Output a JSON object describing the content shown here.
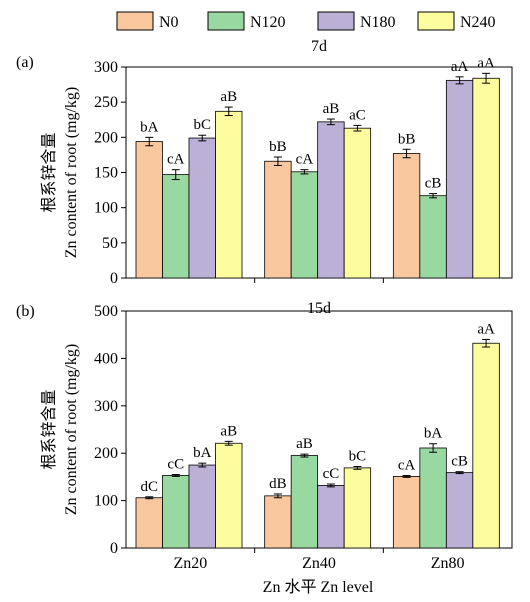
{
  "legend": [
    {
      "label": "N0",
      "color": "#F9C89F"
    },
    {
      "label": "N120",
      "color": "#9AD8A2"
    },
    {
      "label": "N180",
      "color": "#BDB0D6"
    },
    {
      "label": "N240",
      "color": "#FDFC9E"
    }
  ],
  "xaxis_title": "Zn 水平 Zn level",
  "chart_data": [
    {
      "type": "bar",
      "panel": "(a)",
      "title": "7d",
      "ylabel_cn": "根系锌含量",
      "ylabel": "Zn content of root (mg/kg)",
      "ylim": [
        0,
        300
      ],
      "yticks": [
        0,
        50,
        100,
        150,
        200,
        250,
        300
      ],
      "categories": [
        "Zn20",
        "Zn40",
        "Zn80"
      ],
      "series": [
        {
          "name": "N0",
          "values": [
            194,
            166,
            177
          ],
          "errors": [
            6,
            6,
            6
          ],
          "labels": [
            "bA",
            "bB",
            "bB"
          ]
        },
        {
          "name": "N120",
          "values": [
            147,
            151,
            117
          ],
          "errors": [
            7,
            3,
            3
          ],
          "labels": [
            "cA",
            "cA",
            "cB"
          ]
        },
        {
          "name": "N180",
          "values": [
            199,
            222,
            281
          ],
          "errors": [
            4,
            4,
            5
          ],
          "labels": [
            "bC",
            "aB",
            "aA"
          ]
        },
        {
          "name": "N240",
          "values": [
            237,
            213,
            284
          ],
          "errors": [
            6,
            4,
            7
          ],
          "labels": [
            "aB",
            "aC",
            "aA"
          ]
        }
      ]
    },
    {
      "type": "bar",
      "panel": "(b)",
      "title": "15d",
      "ylabel_cn": "根系锌含量",
      "ylabel": "Zn content of root (mg/kg)",
      "ylim": [
        0,
        500
      ],
      "yticks": [
        0,
        100,
        200,
        300,
        400,
        500
      ],
      "categories": [
        "Zn20",
        "Zn40",
        "Zn80"
      ],
      "series": [
        {
          "name": "N0",
          "values": [
            106,
            110,
            151
          ],
          "errors": [
            2,
            4,
            2
          ],
          "labels": [
            "dC",
            "dB",
            "cA"
          ]
        },
        {
          "name": "N120",
          "values": [
            153,
            195,
            211
          ],
          "errors": [
            2,
            3,
            9
          ],
          "labels": [
            "cC",
            "aB",
            "bA"
          ]
        },
        {
          "name": "N180",
          "values": [
            175,
            132,
            159
          ],
          "errors": [
            4,
            3,
            2
          ],
          "labels": [
            "bA",
            "cC",
            "cB"
          ]
        },
        {
          "name": "N240",
          "values": [
            221,
            169,
            432
          ],
          "errors": [
            4,
            3,
            8
          ],
          "labels": [
            "aB",
            "bC",
            "aA"
          ]
        }
      ]
    }
  ]
}
